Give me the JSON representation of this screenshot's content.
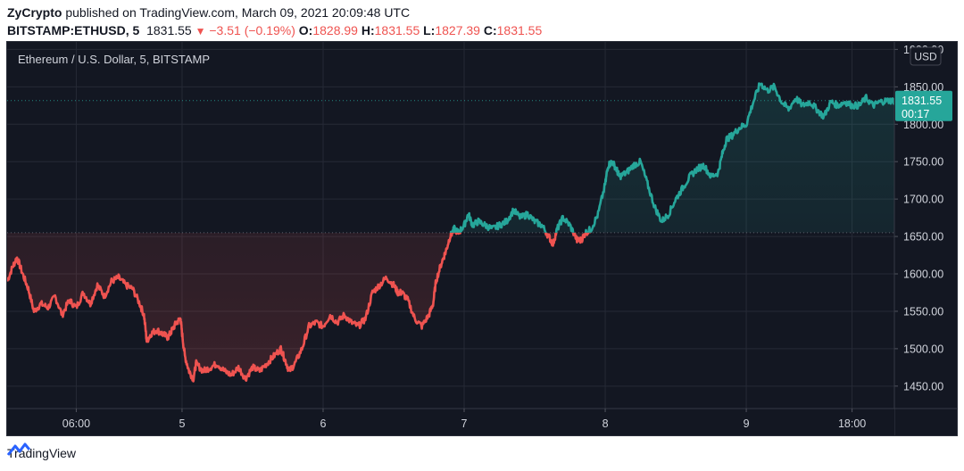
{
  "publish_line": {
    "author": "ZyCrypto",
    "rest": " published on TradingView.com, March 09, 2021 20:09:48 UTC"
  },
  "ohlc_line": {
    "symbol": "BITSTAMP:ETHUSD, 5",
    "price": "1831.55",
    "change": "−3.51 (−0.19%)",
    "o_label": "O:",
    "o": "1828.99",
    "h_label": "H:",
    "h": "1831.55",
    "l_label": "L:",
    "l": "1827.39",
    "c_label": "C:",
    "c": "1831.55"
  },
  "footer": {
    "brand": "TradingView",
    "icon": "tradingview-logo-icon"
  },
  "colors": {
    "background": "#131722",
    "grid": "#262a36",
    "up": "#26a69a",
    "down": "#ef5350",
    "axis_text": "#d1d4dc"
  },
  "chart_data": {
    "type": "line",
    "title": "Ethereum / U.S. Dollar, 5, BITSTAMP",
    "currency_label": "USD",
    "baseline": 1655,
    "ylim": [
      1420,
      1910
    ],
    "xlim": [
      3.76,
      10.05
    ],
    "x_unit": "day of March 2021",
    "y_ticks": [
      {
        "value": 1450,
        "label": "1450.00"
      },
      {
        "value": 1500,
        "label": "1500.00"
      },
      {
        "value": 1550,
        "label": "1550.00"
      },
      {
        "value": 1600,
        "label": "1600.00"
      },
      {
        "value": 1650,
        "label": "1650.00"
      },
      {
        "value": 1700,
        "label": "1700.00"
      },
      {
        "value": 1750,
        "label": "1750.00"
      },
      {
        "value": 1800,
        "label": "1800.00"
      },
      {
        "value": 1850,
        "label": "1850.00"
      },
      {
        "value": 1900,
        "label": "1900.00"
      }
    ],
    "x_ticks": [
      {
        "value": 4.25,
        "label": "06:00"
      },
      {
        "value": 5,
        "label": "5"
      },
      {
        "value": 6,
        "label": "6"
      },
      {
        "value": 7,
        "label": "7"
      },
      {
        "value": 8,
        "label": "8"
      },
      {
        "value": 9,
        "label": "9"
      },
      {
        "value": 9.75,
        "label": "18:00"
      }
    ],
    "last_price": {
      "label": "1831.55",
      "countdown": "00:17",
      "value": 1831.55
    },
    "series": [
      {
        "x": [
          3.76,
          3.8,
          3.83,
          3.87,
          3.91,
          3.95,
          4.0,
          4.05,
          4.1,
          4.15,
          4.2,
          4.25,
          4.3,
          4.35,
          4.4,
          4.45,
          4.5,
          4.55,
          4.6,
          4.65,
          4.7,
          4.73,
          4.75,
          4.78,
          4.82,
          4.86,
          4.9,
          4.93,
          4.96,
          4.99,
          5.0,
          5.02,
          5.05,
          5.08,
          5.1,
          5.15,
          5.2,
          5.25,
          5.3,
          5.35,
          5.4,
          5.45,
          5.5,
          5.55,
          5.6,
          5.65,
          5.7,
          5.73,
          5.76,
          5.8,
          5.85,
          5.9,
          5.95,
          6.0,
          6.05,
          6.1,
          6.15,
          6.2,
          6.25,
          6.3,
          6.35,
          6.4,
          6.45,
          6.5,
          6.53,
          6.56,
          6.6,
          6.65,
          6.7,
          6.75,
          6.78,
          6.8,
          6.84,
          6.87,
          6.9,
          6.93,
          6.96,
          7.0,
          7.03,
          7.06,
          7.1,
          7.15,
          7.2,
          7.25,
          7.3,
          7.35,
          7.4,
          7.45,
          7.5,
          7.55,
          7.6,
          7.63,
          7.66,
          7.7,
          7.75,
          7.8,
          7.83,
          7.86,
          7.9,
          7.95,
          8.0,
          8.02,
          8.05,
          8.08,
          8.1,
          8.15,
          8.2,
          8.25,
          8.3,
          8.35,
          8.4,
          8.45,
          8.5,
          8.55,
          8.6,
          8.65,
          8.7,
          8.75,
          8.8,
          8.83,
          8.86,
          8.9,
          8.95,
          9.0,
          9.05,
          9.1,
          9.15,
          9.2,
          9.25,
          9.3,
          9.35,
          9.4,
          9.45,
          9.5,
          9.55,
          9.6,
          9.65,
          9.7,
          9.75,
          9.8,
          9.85,
          9.9,
          9.95,
          10.0,
          10.05
        ],
        "y": [
          1590,
          1610,
          1622,
          1600,
          1580,
          1550,
          1560,
          1555,
          1570,
          1545,
          1565,
          1555,
          1575,
          1560,
          1585,
          1570,
          1590,
          1595,
          1585,
          1580,
          1560,
          1545,
          1510,
          1520,
          1525,
          1520,
          1515,
          1525,
          1535,
          1540,
          1520,
          1490,
          1470,
          1460,
          1480,
          1470,
          1475,
          1480,
          1470,
          1465,
          1475,
          1460,
          1475,
          1470,
          1480,
          1490,
          1500,
          1485,
          1470,
          1480,
          1500,
          1530,
          1535,
          1530,
          1545,
          1535,
          1545,
          1535,
          1530,
          1540,
          1575,
          1585,
          1595,
          1585,
          1575,
          1575,
          1565,
          1540,
          1530,
          1545,
          1560,
          1590,
          1615,
          1630,
          1650,
          1660,
          1655,
          1665,
          1680,
          1665,
          1670,
          1665,
          1660,
          1665,
          1670,
          1685,
          1675,
          1680,
          1670,
          1665,
          1650,
          1640,
          1660,
          1675,
          1665,
          1645,
          1645,
          1655,
          1660,
          1680,
          1720,
          1745,
          1750,
          1740,
          1730,
          1735,
          1745,
          1750,
          1720,
          1690,
          1670,
          1680,
          1700,
          1715,
          1730,
          1740,
          1745,
          1730,
          1735,
          1760,
          1780,
          1785,
          1795,
          1800,
          1830,
          1855,
          1845,
          1850,
          1830,
          1820,
          1835,
          1825,
          1830,
          1820,
          1810,
          1830,
          1825,
          1830,
          1825,
          1825,
          1835,
          1825,
          1830,
          1831.55,
          1831.55
        ]
      }
    ]
  }
}
